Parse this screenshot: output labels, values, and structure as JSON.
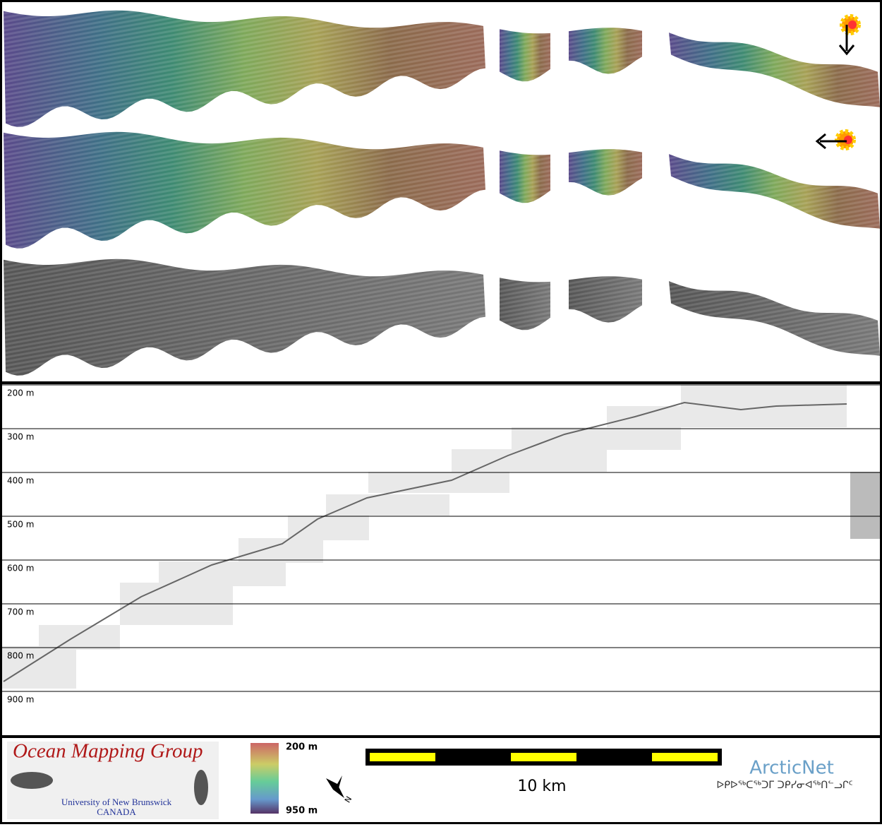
{
  "profile": {
    "ylim": [
      200,
      1000
    ],
    "yticks": [
      {
        "value": 200,
        "label": "200 m"
      },
      {
        "value": 300,
        "label": "300 m"
      },
      {
        "value": 400,
        "label": "400 m"
      },
      {
        "value": 500,
        "label": "500 m"
      },
      {
        "value": 600,
        "label": "600 m"
      },
      {
        "value": 700,
        "label": "700 m"
      },
      {
        "value": 800,
        "label": "800 m"
      },
      {
        "value": 900,
        "label": "900 m"
      }
    ]
  },
  "footer": {
    "logo_title": "Ocean Mapping Group",
    "logo_university": "University of New Brunswick",
    "logo_country": "CANADA",
    "colorbar_top": "200 m",
    "colorbar_bottom": "950 m",
    "north": "N",
    "scale_label": "10 km",
    "partner": "ArcticNet",
    "partner_syllabics": "ᐅᑭᐅᖅᑕᖅᑐᒥ ᑐᑭᓯᓂᐊᖅᑎᓪᓗᒋᑦ"
  }
}
